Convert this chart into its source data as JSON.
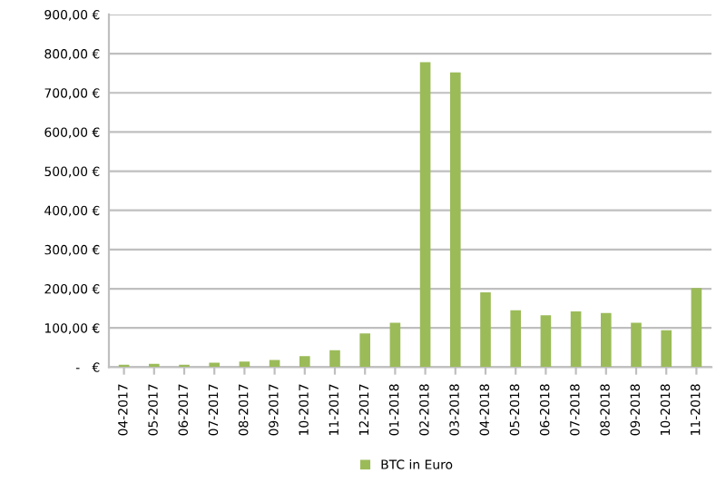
{
  "chart_data": {
    "type": "bar",
    "categories": [
      "04-2017",
      "05-2017",
      "06-2017",
      "07-2017",
      "08-2017",
      "09-2017",
      "10-2017",
      "11-2017",
      "12-2017",
      "01-2018",
      "02-2018",
      "03-2018",
      "04-2018",
      "05-2018",
      "06-2018",
      "07-2018",
      "08-2018",
      "09-2018",
      "10-2018",
      "11-2018"
    ],
    "series": [
      {
        "name": "BTC in Euro",
        "color": "#9bbb59",
        "values": [
          6,
          8,
          6,
          11,
          14,
          18,
          28,
          43,
          86,
          113,
          778,
          752,
          191,
          145,
          132,
          142,
          138,
          113,
          94,
          202
        ]
      }
    ],
    "ylim": [
      0,
      900
    ],
    "yticks": [
      {
        "value": 0,
        "label": " -   €"
      },
      {
        "value": 100,
        "label": "100,00 €"
      },
      {
        "value": 200,
        "label": "200,00 €"
      },
      {
        "value": 300,
        "label": "300,00 €"
      },
      {
        "value": 400,
        "label": "400,00 €"
      },
      {
        "value": 500,
        "label": "500,00 €"
      },
      {
        "value": 600,
        "label": "600,00 €"
      },
      {
        "value": 700,
        "label": "700,00 €"
      },
      {
        "value": 800,
        "label": "800,00 €"
      },
      {
        "value": 900,
        "label": "900,00 €"
      }
    ],
    "grid": "y",
    "legend": "bottom"
  }
}
